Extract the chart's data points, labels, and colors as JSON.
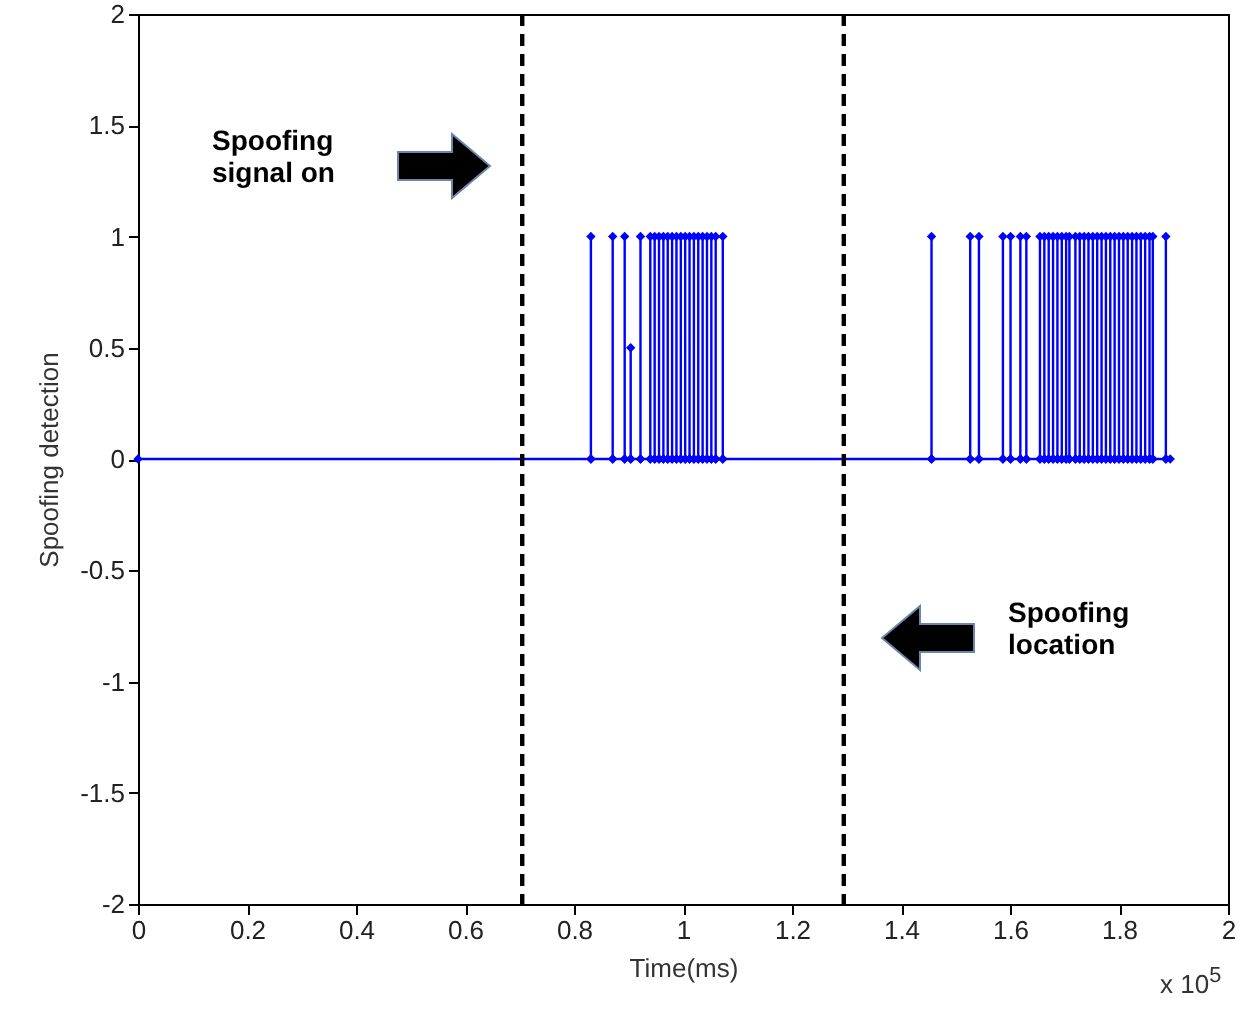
{
  "chart_data": {
    "type": "line",
    "xlabel": "Time(ms)",
    "ylabel": "Spoofing detection",
    "annotations": [
      "Spoofing signal on",
      "Spoofing location",
      "x 10$^{5}$"
    ],
    "xlim": [
      0,
      2
    ],
    "xticks": [
      0,
      0.2,
      0.4,
      0.6,
      0.8,
      1,
      1.2,
      1.4,
      1.6,
      1.8,
      2
    ],
    "ylim": [
      -2,
      2
    ],
    "yticks": [
      -2,
      -1.5,
      -1,
      -0.5,
      0,
      0.5,
      1,
      1.5,
      2
    ],
    "grid": false,
    "marker": "diamond",
    "line_style": "solid",
    "ref_lines": [
      {
        "axis": "x",
        "value": 0.705,
        "color": "#000000",
        "line_style": "dashed"
      },
      {
        "axis": "x",
        "value": 1.295,
        "color": "#000000",
        "line_style": "dashed"
      }
    ],
    "series": [
      {
        "color": "#0000ff",
        "x": [
          0,
          0.831,
          0.831,
          0.831,
          0.871,
          0.871,
          0.871,
          0.893,
          0.893,
          0.893,
          0.904,
          0.904,
          0.904,
          0.922,
          0.922,
          0.922,
          0.94,
          0.94,
          0.94,
          0.948,
          0.948,
          0.948,
          0.956,
          0.956,
          0.956,
          0.964,
          0.964,
          0.964,
          0.972,
          0.972,
          0.972,
          0.98,
          0.98,
          0.98,
          0.988,
          0.988,
          0.988,
          0.996,
          0.996,
          0.996,
          1.004,
          1.004,
          1.004,
          1.012,
          1.012,
          1.012,
          1.02,
          1.02,
          1.02,
          1.028,
          1.028,
          1.028,
          1.036,
          1.036,
          1.036,
          1.044,
          1.044,
          1.044,
          1.052,
          1.052,
          1.052,
          1.06,
          1.06,
          1.06,
          1.073,
          1.073,
          1.073,
          1.456,
          1.456,
          1.456,
          1.527,
          1.527,
          1.527,
          1.543,
          1.543,
          1.543,
          1.587,
          1.587,
          1.587,
          1.601,
          1.601,
          1.601,
          1.619,
          1.619,
          1.619,
          1.63,
          1.63,
          1.63,
          1.655,
          1.655,
          1.655,
          1.663,
          1.663,
          1.663,
          1.671,
          1.671,
          1.671,
          1.679,
          1.679,
          1.679,
          1.687,
          1.687,
          1.687,
          1.695,
          1.695,
          1.695,
          1.703,
          1.703,
          1.703,
          1.709,
          1.709,
          1.709,
          1.72,
          1.72,
          1.72,
          1.728,
          1.728,
          1.728,
          1.736,
          1.736,
          1.736,
          1.744,
          1.744,
          1.744,
          1.752,
          1.752,
          1.752,
          1.76,
          1.76,
          1.76,
          1.768,
          1.768,
          1.768,
          1.776,
          1.776,
          1.776,
          1.784,
          1.784,
          1.784,
          1.792,
          1.792,
          1.792,
          1.8,
          1.8,
          1.8,
          1.808,
          1.808,
          1.808,
          1.816,
          1.816,
          1.816,
          1.824,
          1.824,
          1.824,
          1.832,
          1.832,
          1.832,
          1.84,
          1.84,
          1.84,
          1.848,
          1.848,
          1.848,
          1.856,
          1.856,
          1.856,
          1.862,
          1.862,
          1.862,
          1.886,
          1.886,
          1.886,
          1.894
        ],
        "values": [
          0,
          0,
          1,
          0,
          0,
          1,
          0,
          0,
          1,
          0,
          0,
          0.5,
          0,
          0,
          1,
          0,
          0,
          1,
          0,
          0,
          1,
          0,
          0,
          1,
          0,
          0,
          1,
          0,
          0,
          1,
          0,
          0,
          1,
          0,
          0,
          1,
          0,
          0,
          1,
          0,
          0,
          1,
          0,
          0,
          1,
          0,
          0,
          1,
          0,
          0,
          1,
          0,
          0,
          1,
          0,
          0,
          1,
          0,
          0,
          1,
          0,
          0,
          1,
          0,
          0,
          1,
          0,
          0,
          1,
          0,
          0,
          1,
          0,
          0,
          1,
          0,
          0,
          1,
          0,
          0,
          1,
          0,
          0,
          1,
          0,
          0,
          1,
          0,
          0,
          1,
          0,
          0,
          1,
          0,
          0,
          1,
          0,
          0,
          1,
          0,
          0,
          1,
          0,
          0,
          1,
          0,
          0,
          1,
          0,
          0,
          1,
          0,
          0,
          1,
          0,
          0,
          1,
          0,
          0,
          1,
          0,
          0,
          1,
          0,
          0,
          1,
          0,
          0,
          1,
          0,
          0,
          1,
          0,
          0,
          1,
          0,
          0,
          1,
          0,
          0,
          1,
          0,
          0,
          1,
          0,
          0,
          1,
          0,
          0,
          1,
          0,
          0,
          1,
          0,
          0,
          1,
          0,
          0,
          1,
          0,
          0,
          1,
          0,
          0,
          1,
          0,
          0,
          1,
          0,
          0,
          1,
          0,
          0
        ]
      }
    ]
  }
}
